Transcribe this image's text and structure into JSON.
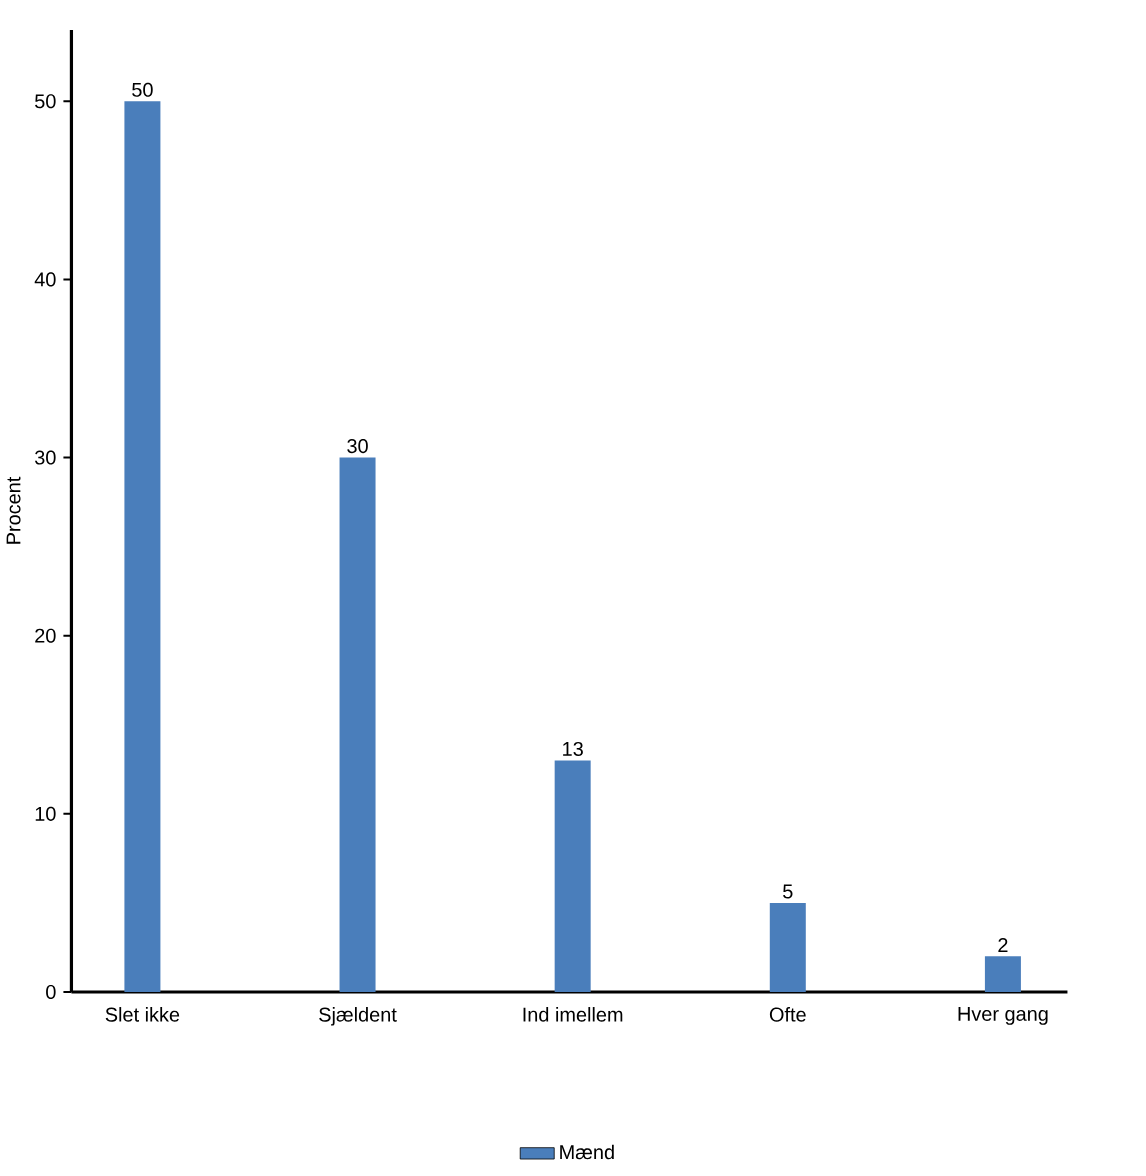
{
  "chart_data": {
    "type": "bar",
    "categories": [
      "Slet ikke",
      "Sjældent",
      "Ind imellem",
      "Ofte",
      "Hver gang"
    ],
    "series": [
      {
        "name": "Mænd",
        "color": "#4a7ebb",
        "values": [
          50,
          30,
          13,
          5,
          2
        ]
      }
    ],
    "ylabel": "Procent",
    "ylim": [
      0,
      54
    ],
    "yticks": [
      0,
      10,
      20,
      30,
      40,
      50
    ],
    "data_labels": true,
    "grid": false,
    "legend": "bottom"
  }
}
